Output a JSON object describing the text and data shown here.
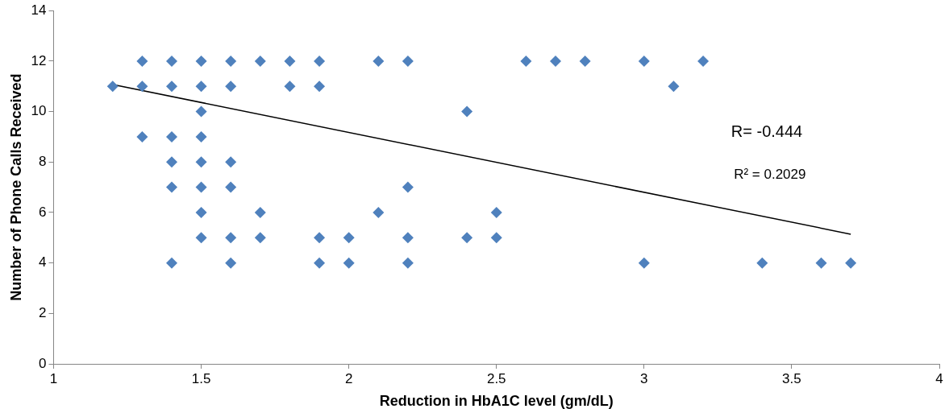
{
  "chart_data": {
    "type": "scatter",
    "xlabel": "Reduction in HbA1C level (gm/dL)",
    "ylabel": "Number of Phone Calls Received",
    "xlim": [
      1,
      4
    ],
    "xticks": [
      1,
      1.5,
      2,
      2.5,
      3,
      3.5,
      4
    ],
    "ylim": [
      0,
      14
    ],
    "yticks": [
      0,
      2,
      4,
      6,
      8,
      10,
      12,
      14
    ],
    "grid": false,
    "legend": false,
    "marker": "diamond",
    "series": [
      {
        "color": "#4f81bd",
        "x": [
          1.3,
          1.4,
          1.5,
          1.6,
          1.7,
          1.8,
          1.9,
          2.1,
          2.2,
          2.6,
          2.7,
          2.8,
          3.0,
          3.2,
          1.2,
          1.3,
          1.4,
          1.5,
          1.6,
          1.8,
          1.9,
          3.1,
          1.5,
          2.4,
          1.3,
          1.4,
          1.5,
          1.4,
          1.5,
          1.6,
          1.4,
          1.5,
          1.6,
          2.2,
          1.5,
          1.7,
          2.1,
          2.5,
          1.5,
          1.6,
          1.7,
          1.9,
          2.0,
          2.2,
          2.4,
          2.5,
          1.4,
          1.6,
          1.9,
          2.0,
          2.2,
          3.0,
          3.4,
          3.6,
          3.7
        ],
        "values": [
          12,
          12,
          12,
          12,
          12,
          12,
          12,
          12,
          12,
          12,
          12,
          12,
          12,
          12,
          11,
          11,
          11,
          11,
          11,
          11,
          11,
          11,
          10,
          10,
          9,
          9,
          9,
          8,
          8,
          8,
          7,
          7,
          7,
          7,
          6,
          6,
          6,
          6,
          5,
          5,
          5,
          5,
          5,
          5,
          5,
          5,
          4,
          4,
          4,
          4,
          4,
          4,
          4,
          4,
          4
        ]
      },
      {
        "type": "line",
        "color": "#000000",
        "marker": "none",
        "x": [
          1.2,
          3.7
        ],
        "values": [
          11.07,
          5.14
        ]
      }
    ],
    "annotations": [
      "R= -0.444",
      "R² = 0.2029"
    ]
  }
}
